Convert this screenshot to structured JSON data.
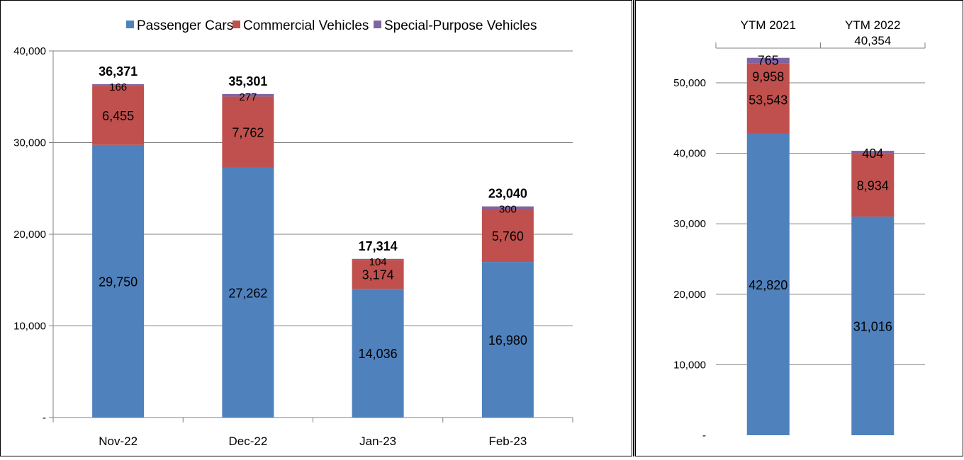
{
  "colors": {
    "passenger": "#4f81bd",
    "commercial": "#c0504d",
    "special": "#8064a2",
    "grid": "#808080",
    "border": "#000000"
  },
  "chart_data": [
    {
      "type": "bar",
      "stacked": true,
      "title": "",
      "xlabel": "",
      "ylabel": "",
      "categories": [
        "Nov-22",
        "Dec-22",
        "Jan-23",
        "Feb-23"
      ],
      "series": [
        {
          "name": "Passenger Cars",
          "values": [
            29750,
            27262,
            14036,
            16980
          ]
        },
        {
          "name": "Commercial Vehicles",
          "values": [
            6455,
            7762,
            3174,
            5760
          ]
        },
        {
          "name": "Special-Purpose Vehicles",
          "values": [
            166,
            277,
            104,
            300
          ]
        }
      ],
      "totals": [
        "36,371",
        "35,301",
        "17,314",
        "23,040"
      ],
      "segment_labels": [
        [
          "29,750",
          "27,262",
          "14,036",
          "16,980"
        ],
        [
          "6,455",
          "7,762",
          "3,174",
          "5,760"
        ],
        [
          "166",
          "277",
          "104",
          "300"
        ]
      ],
      "ylim": [
        0,
        40000
      ],
      "yticks": [
        0,
        10000,
        20000,
        30000,
        40000
      ],
      "ytick_labels": [
        "-",
        "10,000",
        "20,000",
        "30,000",
        "40,000"
      ],
      "grid": true,
      "legend": "top"
    },
    {
      "type": "bar",
      "stacked": true,
      "title": "",
      "xlabel": "",
      "ylabel": "",
      "categories": [
        "YTM 2021",
        "YTM 2022"
      ],
      "extra_header_label": "40,354",
      "series": [
        {
          "name": "Passenger Cars",
          "values": [
            42820,
            31016
          ]
        },
        {
          "name": "Commercial Vehicles",
          "values": [
            9958,
            8934
          ]
        },
        {
          "name": "Special-Purpose Vehicles",
          "values": [
            765,
            404
          ]
        }
      ],
      "segment_labels": [
        [
          "42,820",
          "31,016"
        ],
        [
          "9,958",
          "8,934"
        ],
        [
          "765",
          "404"
        ]
      ],
      "extra_bar_label": "53,543",
      "ylim": [
        0,
        55000
      ],
      "yticks": [
        0,
        10000,
        20000,
        30000,
        40000,
        50000
      ],
      "ytick_labels": [
        "-",
        "10,000",
        "20,000",
        "30,000",
        "40,000",
        "50,000"
      ],
      "grid": true,
      "legend": "none"
    }
  ]
}
